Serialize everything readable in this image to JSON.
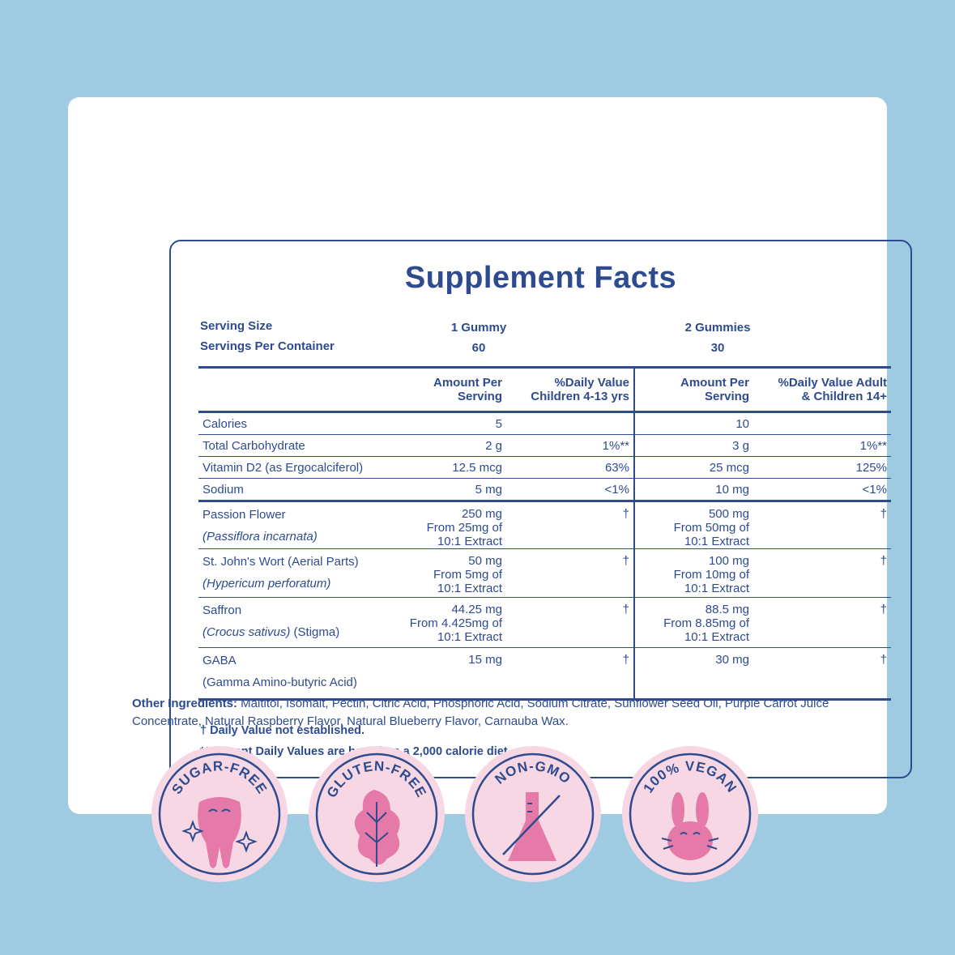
{
  "title": "Supplement Facts",
  "serving": {
    "size_label": "Serving Size",
    "per_container_label": "Servings Per Container",
    "size_child": "1 Gummy",
    "size_adult": "2 Gummies",
    "per_container_child": "60",
    "per_container_adult": "30"
  },
  "headers": {
    "amount_child": [
      "Amount Per",
      "Serving"
    ],
    "dv_child": [
      "%Daily Value",
      "Children 4-13 yrs"
    ],
    "amount_adult": [
      "Amount Per",
      "Serving"
    ],
    "dv_adult": [
      "%Daily Value Adult",
      "& Children 14+"
    ]
  },
  "nutrients": [
    {
      "name": "Calories",
      "amount_child": "5",
      "dv_child": "",
      "amount_adult": "10",
      "dv_adult": ""
    },
    {
      "name": "Total Carbohydrate",
      "amount_child": "2 g",
      "dv_child": "1%**",
      "amount_adult": "3 g",
      "dv_adult": "1%**"
    },
    {
      "name": "Vitamin D2 (as Ergocalciferol)",
      "amount_child": "12.5 mcg",
      "dv_child": "63%",
      "amount_adult": "25 mcg",
      "dv_adult": "125%"
    },
    {
      "name": "Sodium",
      "amount_child": "5 mg",
      "dv_child": "<1%",
      "amount_adult": "10 mg",
      "dv_adult": "<1%"
    }
  ],
  "botanicals": [
    {
      "name": "Passion Flower",
      "sci": "(Passiflora incarnata)",
      "sci_suffix": "",
      "amount_child": [
        "250 mg",
        "From 25mg of",
        "10:1 Extract"
      ],
      "dv_child": "†",
      "amount_adult": [
        "500 mg",
        "From 50mg of",
        "10:1 Extract"
      ],
      "dv_adult": "†"
    },
    {
      "name": "St. John's Wort (Aerial Parts)",
      "sci": "(Hypericum perforatum)",
      "sci_suffix": "",
      "amount_child": [
        "50 mg",
        "From 5mg of",
        "10:1 Extract"
      ],
      "dv_child": "†",
      "amount_adult": [
        "100 mg",
        "From 10mg of",
        "10:1 Extract"
      ],
      "dv_adult": "†"
    },
    {
      "name": "Saffron",
      "sci": "(Crocus sativus)",
      "sci_suffix": " (Stigma)",
      "amount_child": [
        "44.25 mg",
        "From 4.425mg of",
        "10:1 Extract"
      ],
      "dv_child": "†",
      "amount_adult": [
        "88.5 mg",
        "From 8.85mg of",
        "10:1 Extract"
      ],
      "dv_adult": "†"
    },
    {
      "name": "GABA",
      "sci": "",
      "sci_suffix": "(Gamma Amino-butyric Acid)",
      "amount_child": [
        "15 mg",
        "",
        ""
      ],
      "dv_child": "†",
      "amount_adult": [
        "30 mg",
        "",
        ""
      ],
      "dv_adult": "†"
    }
  ],
  "footnotes": [
    "† Daily Value not established.",
    "**Percent Daily Values are based on a 2,000 calorie diet."
  ],
  "other_ingredients": {
    "label": "Other Ingredients:",
    "text": " Maltitol, Isomalt, Pectin, Citric Acid, Phosphoric Acid, Sodium Citrate, Sunflower Seed Oil, Purple Carrot Juice Concentrate, Natural Raspberry Flavor, Natural Blueberry Flavor, Carnauba Wax."
  },
  "badges": [
    {
      "label": "SUGAR-FREE",
      "icon": "tooth-icon"
    },
    {
      "label": "GLUTEN-FREE",
      "icon": "leaf-icon"
    },
    {
      "label": "NON-GMO",
      "icon": "crossed-flask-icon"
    },
    {
      "label": "100% VEGAN",
      "icon": "bunny-icon"
    }
  ],
  "colors": {
    "background": "#9fcbe2",
    "navy": "#2d4b8e",
    "badge_bg": "#f7d7e4",
    "badge_icon": "#e57aa9"
  }
}
